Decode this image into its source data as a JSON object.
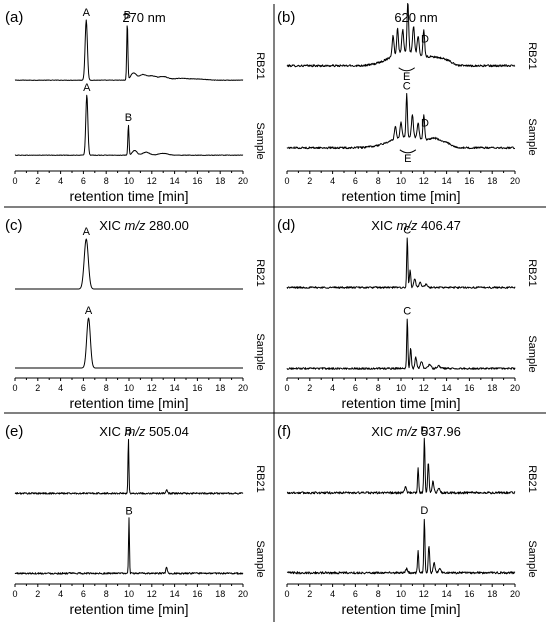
{
  "chart_data": [
    {
      "type": "line",
      "panel_label": "(a)",
      "title": "270 nm",
      "title_prefix": "",
      "title_italic": "",
      "title_suffix": "",
      "xlabel": "retention time [min]",
      "xlim": [
        0,
        20
      ],
      "xticks": [
        "0",
        "2",
        "4",
        "6",
        "8",
        "10",
        "12",
        "14",
        "16",
        "18",
        "20"
      ],
      "series": [
        {
          "name": "RB21",
          "baseline": 0.03,
          "noise": 0.004,
          "peaks": [
            [
              6.25,
              1.0,
              0.1
            ],
            [
              9.85,
              0.95,
              0.05
            ],
            [
              10.4,
              0.12,
              0.25
            ],
            [
              11.2,
              0.09,
              0.3
            ],
            [
              12.0,
              0.07,
              0.35
            ],
            [
              13.0,
              0.06,
              0.4
            ],
            [
              14.5,
              0.03,
              0.6
            ],
            [
              16.0,
              0.02,
              0.7
            ]
          ],
          "labels": [
            {
              "text": "A",
              "x": 6.25
            },
            {
              "text": "B",
              "x": 9.85
            }
          ]
        },
        {
          "name": "Sample",
          "baseline": 0.03,
          "noise": 0.004,
          "peaks": [
            [
              6.3,
              1.0,
              0.09
            ],
            [
              9.95,
              0.5,
              0.05
            ],
            [
              10.5,
              0.08,
              0.2
            ],
            [
              11.5,
              0.05,
              0.3
            ],
            [
              13.0,
              0.03,
              0.4
            ]
          ],
          "labels": [
            {
              "text": "A",
              "x": 6.3
            },
            {
              "text": "B",
              "x": 9.95
            }
          ]
        }
      ]
    },
    {
      "type": "line",
      "panel_label": "(b)",
      "title": "620 nm",
      "title_prefix": "",
      "title_italic": "",
      "title_suffix": "",
      "xlabel": "retention time [min]",
      "xlim": [
        0,
        20
      ],
      "xticks": [
        "0",
        "2",
        "4",
        "6",
        "8",
        "10",
        "12",
        "14",
        "16",
        "18",
        "20"
      ],
      "series": [
        {
          "name": "RB21",
          "baseline": 0.12,
          "noise": 0.02,
          "peaks": [
            [
              9.3,
              0.38,
              0.08
            ],
            [
              9.7,
              0.5,
              0.07
            ],
            [
              10.15,
              0.42,
              0.08
            ],
            [
              10.6,
              0.95,
              0.07
            ],
            [
              11.1,
              0.5,
              0.08
            ],
            [
              11.5,
              0.35,
              0.08
            ],
            [
              12.0,
              0.52,
              0.07
            ],
            [
              10.5,
              0.28,
              1.4
            ],
            [
              13.0,
              0.1,
              0.6
            ],
            [
              14.0,
              0.08,
              0.5
            ]
          ],
          "labels": [
            {
              "text": "C",
              "x": 10.6
            },
            {
              "text": "D",
              "x": 12.1
            },
            {
              "text": "E",
              "x": 10.5,
              "below": true
            }
          ]
        },
        {
          "name": "Sample",
          "baseline": 0.1,
          "noise": 0.018,
          "peaks": [
            [
              9.5,
              0.25,
              0.08
            ],
            [
              10.0,
              0.3,
              0.08
            ],
            [
              10.5,
              0.82,
              0.06
            ],
            [
              11.0,
              0.42,
              0.08
            ],
            [
              11.5,
              0.3,
              0.08
            ],
            [
              12.0,
              0.48,
              0.07
            ],
            [
              10.6,
              0.22,
              1.5
            ],
            [
              13.0,
              0.12,
              0.5
            ],
            [
              14.0,
              0.07,
              0.4
            ]
          ],
          "labels": [
            {
              "text": "C",
              "x": 10.5
            },
            {
              "text": "D",
              "x": 12.1
            },
            {
              "text": "E",
              "x": 10.6,
              "below": true
            }
          ]
        }
      ]
    },
    {
      "type": "line",
      "panel_label": "(c)",
      "title": "",
      "title_prefix": "XIC ",
      "title_italic": "m/z",
      "title_suffix": " 280.00",
      "xlabel": "retention time [min]",
      "xlim": [
        0,
        20
      ],
      "xticks": [
        "0",
        "2",
        "4",
        "6",
        "8",
        "10",
        "12",
        "14",
        "16",
        "18",
        "20"
      ],
      "series": [
        {
          "name": "RB21",
          "baseline": 0.0,
          "noise": 0.0,
          "peaks": [
            [
              6.25,
              1.0,
              0.18
            ]
          ],
          "labels": [
            {
              "text": "A",
              "x": 6.25
            }
          ]
        },
        {
          "name": "Sample",
          "baseline": 0.0,
          "noise": 0.0,
          "peaks": [
            [
              6.45,
              1.0,
              0.16
            ]
          ],
          "labels": [
            {
              "text": "A",
              "x": 6.45
            }
          ]
        }
      ]
    },
    {
      "type": "line",
      "panel_label": "(d)",
      "title": "",
      "title_prefix": "XIC ",
      "title_italic": "m/z",
      "title_suffix": " 406.47",
      "xlabel": "retention time [min]",
      "xlim": [
        0,
        20
      ],
      "xticks": [
        "0",
        "2",
        "4",
        "6",
        "8",
        "10",
        "12",
        "14",
        "16",
        "18",
        "20"
      ],
      "series": [
        {
          "name": "RB21",
          "baseline": 0.03,
          "noise": 0.018,
          "peaks": [
            [
              10.55,
              1.0,
              0.05
            ],
            [
              10.8,
              0.35,
              0.06
            ],
            [
              11.2,
              0.18,
              0.08
            ],
            [
              11.7,
              0.1,
              0.1
            ],
            [
              12.2,
              0.06,
              0.12
            ]
          ],
          "labels": [
            {
              "text": "C",
              "x": 10.55
            }
          ]
        },
        {
          "name": "Sample",
          "baseline": 0.03,
          "noise": 0.018,
          "peaks": [
            [
              10.55,
              1.0,
              0.05
            ],
            [
              10.85,
              0.4,
              0.06
            ],
            [
              11.3,
              0.22,
              0.08
            ],
            [
              11.8,
              0.15,
              0.1
            ],
            [
              12.5,
              0.08,
              0.12
            ],
            [
              13.3,
              0.05,
              0.15
            ]
          ],
          "labels": [
            {
              "text": "C",
              "x": 10.55
            }
          ]
        }
      ]
    },
    {
      "type": "line",
      "panel_label": "(e)",
      "title": "",
      "title_prefix": "XIC ",
      "title_italic": "m/z",
      "title_suffix": " 505.04",
      "xlabel": "retention time [min]",
      "xlim": [
        0,
        20
      ],
      "xticks": [
        "0",
        "2",
        "4",
        "6",
        "8",
        "10",
        "12",
        "14",
        "16",
        "18",
        "20"
      ],
      "series": [
        {
          "name": "RB21",
          "baseline": 0.03,
          "noise": 0.015,
          "peaks": [
            [
              9.95,
              1.0,
              0.04
            ],
            [
              13.3,
              0.08,
              0.06
            ]
          ],
          "labels": [
            {
              "text": "B",
              "x": 9.95
            }
          ]
        },
        {
          "name": "Sample",
          "baseline": 0.03,
          "noise": 0.015,
          "peaks": [
            [
              10.0,
              1.0,
              0.04
            ],
            [
              13.3,
              0.12,
              0.06
            ]
          ],
          "labels": [
            {
              "text": "B",
              "x": 10.0
            }
          ]
        }
      ]
    },
    {
      "type": "line",
      "panel_label": "(f)",
      "title": "",
      "title_prefix": "XIC ",
      "title_italic": "m/z",
      "title_suffix": " 537.96",
      "xlabel": "retention time [min]",
      "xlim": [
        0,
        20
      ],
      "xticks": [
        "0",
        "2",
        "4",
        "6",
        "8",
        "10",
        "12",
        "14",
        "16",
        "18",
        "20"
      ],
      "series": [
        {
          "name": "RB21",
          "baseline": 0.04,
          "noise": 0.02,
          "peaks": [
            [
              10.4,
              0.12,
              0.08
            ],
            [
              11.5,
              0.45,
              0.05
            ],
            [
              12.05,
              1.0,
              0.05
            ],
            [
              12.4,
              0.55,
              0.06
            ],
            [
              12.8,
              0.2,
              0.08
            ],
            [
              13.3,
              0.08,
              0.1
            ]
          ],
          "labels": [
            {
              "text": "D",
              "x": 12.05
            }
          ]
        },
        {
          "name": "Sample",
          "baseline": 0.04,
          "noise": 0.02,
          "peaks": [
            [
              10.5,
              0.08,
              0.08
            ],
            [
              11.5,
              0.4,
              0.05
            ],
            [
              12.05,
              1.0,
              0.05
            ],
            [
              12.45,
              0.5,
              0.06
            ],
            [
              12.9,
              0.18,
              0.08
            ],
            [
              13.4,
              0.07,
              0.1
            ]
          ],
          "labels": [
            {
              "text": "D",
              "x": 12.05
            }
          ]
        }
      ]
    }
  ]
}
